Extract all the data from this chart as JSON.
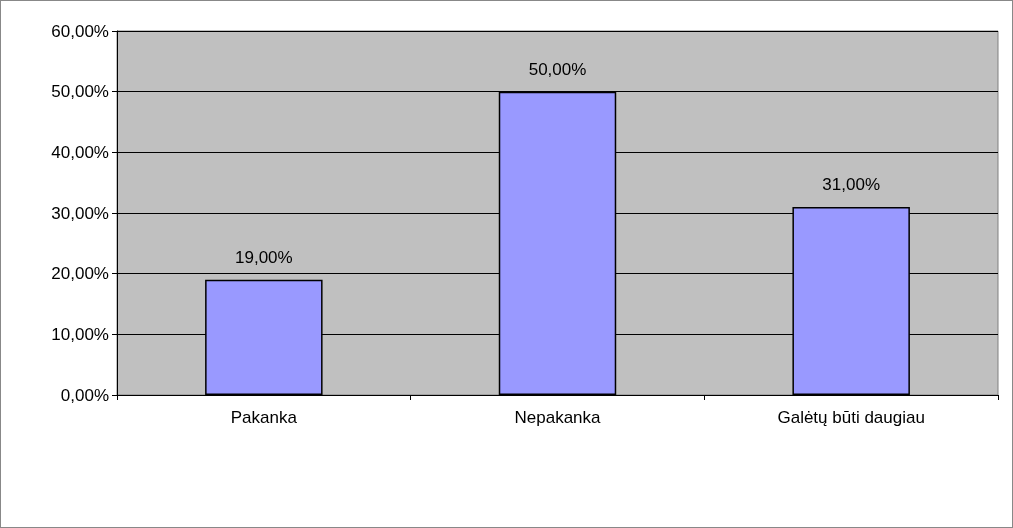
{
  "chart_data": {
    "type": "bar",
    "categories": [
      "Pakanka",
      "Nepakanka",
      "Galėtų būti daugiau"
    ],
    "values": [
      19,
      50,
      31
    ],
    "color": "#9999ff",
    "value_labels": [
      "19,00%",
      "50,00%",
      "31,00%"
    ],
    "ylim": [
      0,
      60
    ],
    "yticks": [
      {
        "value": 0,
        "label": "0,00%"
      },
      {
        "value": 10,
        "label": "10,00%"
      },
      {
        "value": 20,
        "label": "20,00%"
      },
      {
        "value": 30,
        "label": "30,00%"
      },
      {
        "value": 40,
        "label": "40,00%"
      },
      {
        "value": 50,
        "label": "50,00%"
      },
      {
        "value": 60,
        "label": "60,00%"
      }
    ],
    "grid": "y"
  }
}
